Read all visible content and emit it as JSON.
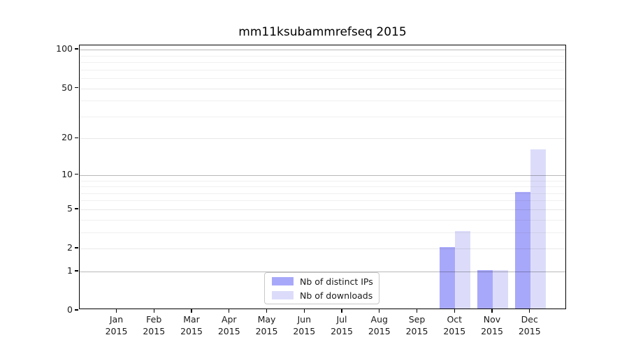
{
  "chart_data": {
    "type": "bar",
    "title": "mm11ksubammrefseq 2015",
    "categories": [
      "Jan 2015",
      "Feb 2015",
      "Mar 2015",
      "Apr 2015",
      "May 2015",
      "Jun 2015",
      "Jul 2015",
      "Aug 2015",
      "Sep 2015",
      "Oct 2015",
      "Nov 2015",
      "Dec 2015"
    ],
    "series": [
      {
        "name": "Nb of distinct IPs",
        "color": "#a8a8fa",
        "values": [
          0,
          0,
          0,
          0,
          0,
          0,
          0,
          0,
          0,
          2,
          1,
          7
        ]
      },
      {
        "name": "Nb of downloads",
        "color": "#dcdcfa",
        "values": [
          0,
          0,
          0,
          0,
          0,
          0,
          0,
          0,
          0,
          3,
          1,
          16
        ]
      }
    ],
    "xlabel": "",
    "ylabel": "",
    "y_scale": "log10(value+1)",
    "y_ticks": [
      0,
      1,
      2,
      5,
      10,
      20,
      50,
      100
    ],
    "y_major_gridlines": [
      1,
      10,
      100
    ],
    "y_minor_gridlines": [
      3,
      4,
      6,
      7,
      8,
      9,
      30,
      40,
      60,
      70,
      80,
      90
    ],
    "ylim": [
      0,
      110
    ],
    "grid": true,
    "legend_position": "inside lower-center"
  }
}
